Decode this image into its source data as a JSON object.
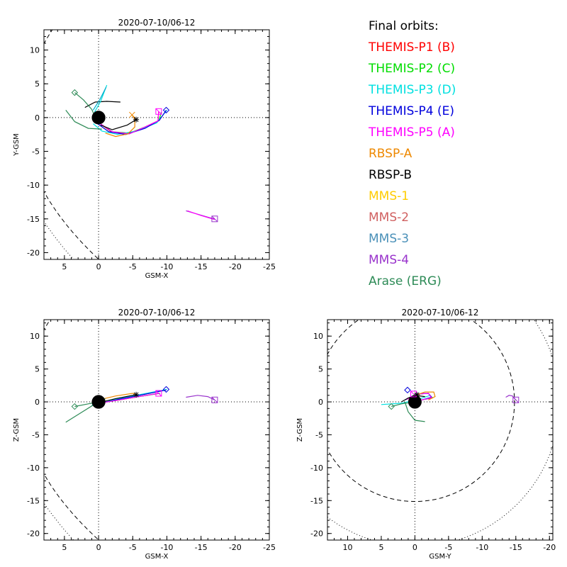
{
  "legend": {
    "header": "Final orbits:",
    "items": [
      {
        "label": "THEMIS-P1 (B)",
        "color": "#ff0000"
      },
      {
        "label": "THEMIS-P2 (C)",
        "color": "#00dd00"
      },
      {
        "label": "THEMIS-P3 (D)",
        "color": "#00e0e0"
      },
      {
        "label": "THEMIS-P4 (E)",
        "color": "#0000dd"
      },
      {
        "label": "THEMIS-P5 (A)",
        "color": "#ff00ff"
      },
      {
        "label": "RBSP-A",
        "color": "#ee8800"
      },
      {
        "label": "RBSP-B",
        "color": "#000000"
      },
      {
        "label": "MMS-1",
        "color": "#ffcc00"
      },
      {
        "label": "MMS-2",
        "color": "#d06060"
      },
      {
        "label": "MMS-3",
        "color": "#4a90b8"
      },
      {
        "label": "MMS-4",
        "color": "#9933cc"
      },
      {
        "label": "Arase (ERG)",
        "color": "#2e8b57"
      }
    ]
  },
  "chart_data": [
    {
      "type": "line",
      "title": "2020-07-10/06-12",
      "xlabel": "GSM-X",
      "ylabel": "Y-GSM",
      "xlim": [
        8,
        -25
      ],
      "ylim": [
        13,
        -21
      ],
      "xticks": [
        5,
        0,
        -5,
        -10,
        -15,
        -20,
        -25
      ],
      "yticks": [
        10,
        5,
        0,
        -5,
        -10,
        -15,
        -20
      ],
      "grid": "dotted zero lines",
      "series": [
        {
          "color": "#ff0000",
          "points": [
            [
              0.2,
              -0.6
            ],
            [
              -2,
              -2.2
            ],
            [
              -4.5,
              -2.4
            ],
            [
              -6.8,
              -1.4
            ],
            [
              -8.7,
              -0.5
            ],
            [
              -8.8,
              0.9
            ]
          ]
        },
        {
          "color": "#00dd00",
          "points": [
            [
              0.2,
              -0.6
            ],
            [
              -2,
              -2.1
            ],
            [
              -4.5,
              -2.3
            ],
            [
              -6.8,
              -1.4
            ],
            [
              -8.8,
              -0.5
            ],
            [
              -9.2,
              0.8
            ]
          ]
        },
        {
          "color": "#00e0e0",
          "points": [
            [
              0.8,
              -0.9
            ],
            [
              -0.5,
              -2
            ],
            [
              -2.8,
              -2.5
            ],
            [
              -5.5,
              -2
            ],
            [
              -8.5,
              -0.8
            ],
            [
              -10,
              1.1
            ]
          ]
        },
        {
          "color": "#0000dd",
          "points": [
            [
              0.3,
              -0.8
            ],
            [
              -1.5,
              -2.1
            ],
            [
              -4,
              -2.5
            ],
            [
              -6.8,
              -1.6
            ],
            [
              -8.9,
              -0.4
            ],
            [
              -9.9,
              1.1
            ]
          ]
        },
        {
          "color": "#ff00ff",
          "points": [
            [
              0.2,
              -0.6
            ],
            [
              -2,
              -2.1
            ],
            [
              -4.5,
              -2.4
            ],
            [
              -6.8,
              -1.4
            ],
            [
              -8.7,
              -0.5
            ],
            [
              -8.8,
              0.9
            ]
          ]
        },
        {
          "color": "#ee8800",
          "points": [
            [
              -1,
              -2.3
            ],
            [
              -2.5,
              -2.8
            ],
            [
              -4.3,
              -2.4
            ],
            [
              -5.3,
              -1.4
            ],
            [
              -5.3,
              -0.3
            ],
            [
              -4.9,
              0.4
            ]
          ]
        },
        {
          "color": "#000000",
          "points": [
            [
              2,
              1.5
            ],
            [
              0.5,
              2.3
            ],
            [
              -1.2,
              2.4
            ],
            [
              -3.2,
              2.3
            ]
          ]
        },
        {
          "color": "#000000",
          "points": [
            [
              -0.3,
              -1.1
            ],
            [
              -2,
              -1.8
            ],
            [
              -4.2,
              -1.1
            ],
            [
              -5.5,
              -0.3
            ]
          ]
        },
        {
          "color": "#00e0e0",
          "points": [
            [
              0.6,
              0.8
            ],
            [
              -0.3,
              2.4
            ],
            [
              -1.2,
              4.8
            ]
          ]
        },
        {
          "color": "#00aacc",
          "points": [
            [
              0.8,
              1.1
            ],
            [
              -0.2,
              2.7
            ],
            [
              -1.1,
              4.5
            ]
          ]
        },
        {
          "color": "#2e8b57",
          "points": [
            [
              4.8,
              1.1
            ],
            [
              3.5,
              -0.6
            ],
            [
              1.5,
              -1.6
            ],
            [
              -0.5,
              -1.7
            ]
          ]
        },
        {
          "color": "#2e8b57",
          "points": [
            [
              3.5,
              3.7
            ],
            [
              2.2,
              2.6
            ],
            [
              1,
              1.2
            ],
            [
              0.6,
              0.3
            ]
          ]
        },
        {
          "color": "#9933cc",
          "points": [
            [
              -12.8,
              -13.8
            ],
            [
              -14.5,
              -14.3
            ],
            [
              -16.2,
              -14.8
            ],
            [
              -17,
              -15
            ]
          ]
        },
        {
          "color": "#ff00ff",
          "points": [
            [
              -13,
              -13.8
            ],
            [
              -15,
              -14.5
            ],
            [
              -17,
              -15.1
            ]
          ]
        }
      ],
      "markers": [
        {
          "x": -9.9,
          "y": 1.1,
          "shape": "diamond",
          "color": "#0000dd"
        },
        {
          "x": -8.8,
          "y": 0.9,
          "shape": "square",
          "color": "#ff00ff"
        },
        {
          "x": -4.9,
          "y": 0.4,
          "shape": "cross",
          "color": "#ee8800"
        },
        {
          "x": -5.5,
          "y": -0.3,
          "shape": "star",
          "color": "#000000"
        },
        {
          "x": 3.5,
          "y": 3.7,
          "shape": "diamond",
          "color": "#2e8b57"
        },
        {
          "x": -17,
          "y": -15,
          "shape": "square",
          "color": "#9933cc"
        }
      ],
      "earth": {
        "x": 0,
        "y": 0,
        "r": 1
      },
      "boundaries": [
        {
          "style": "dashed",
          "x0": 11,
          "ymax": 25,
          "axis": "y"
        },
        {
          "style": "dotted",
          "x0": 13,
          "ymax": 28,
          "axis": "y"
        }
      ]
    },
    {
      "type": "line",
      "title": "2020-07-10/06-12",
      "xlabel": "GSM-X",
      "ylabel": "Z-GSM",
      "xlim": [
        8,
        -25
      ],
      "ylim": [
        -21,
        12.5
      ],
      "xticks": [
        5,
        0,
        -5,
        -10,
        -15,
        -20,
        -25
      ],
      "yticks": [
        10,
        5,
        0,
        -5,
        -10,
        -15,
        -20
      ],
      "grid": "dotted zero lines",
      "series": [
        {
          "color": "#ff0000",
          "points": [
            [
              0.5,
              -0.3
            ],
            [
              -3,
              0.3
            ],
            [
              -6.5,
              0.9
            ],
            [
              -8.8,
              1.3
            ]
          ]
        },
        {
          "color": "#00dd00",
          "points": [
            [
              0.5,
              -0.3
            ],
            [
              -3,
              0.3
            ],
            [
              -6.5,
              0.9
            ],
            [
              -9,
              1.3
            ]
          ]
        },
        {
          "color": "#00e0e0",
          "points": [
            [
              1,
              -0.5
            ],
            [
              -3,
              0.5
            ],
            [
              -7,
              1.3
            ],
            [
              -10,
              1.9
            ]
          ]
        },
        {
          "color": "#0000dd",
          "points": [
            [
              0.6,
              -0.4
            ],
            [
              -3,
              0.4
            ],
            [
              -7,
              1.2
            ],
            [
              -9.9,
              1.8
            ]
          ]
        },
        {
          "color": "#ff00ff",
          "points": [
            [
              0.5,
              -0.3
            ],
            [
              -3,
              0.3
            ],
            [
              -6.5,
              0.9
            ],
            [
              -8.8,
              1.3
            ]
          ]
        },
        {
          "color": "#ee8800",
          "points": [
            [
              0,
              0.3
            ],
            [
              -2.5,
              0.9
            ],
            [
              -5,
              1.3
            ],
            [
              -5.3,
              1.2
            ]
          ]
        },
        {
          "color": "#000000",
          "points": [
            [
              0.3,
              -0.2
            ],
            [
              -2.5,
              0.5
            ],
            [
              -5.5,
              1.1
            ]
          ]
        },
        {
          "color": "#2e8b57",
          "points": [
            [
              4.8,
              -3.1
            ],
            [
              2.5,
              -1.6
            ],
            [
              0.5,
              -0.3
            ],
            [
              -1,
              0.5
            ]
          ]
        },
        {
          "color": "#2e8b57",
          "points": [
            [
              3.5,
              -0.7
            ],
            [
              1.5,
              -0.3
            ],
            [
              0,
              0
            ]
          ]
        },
        {
          "color": "#9933cc",
          "points": [
            [
              -12.8,
              0.7
            ],
            [
              -14.5,
              1
            ],
            [
              -16,
              0.8
            ],
            [
              -17,
              0.3
            ]
          ]
        }
      ],
      "markers": [
        {
          "x": -9.9,
          "y": 1.9,
          "shape": "diamond",
          "color": "#0000dd"
        },
        {
          "x": -8.8,
          "y": 1.3,
          "shape": "square",
          "color": "#ff00ff"
        },
        {
          "x": -5.5,
          "y": 1.1,
          "shape": "star",
          "color": "#000000"
        },
        {
          "x": 3.5,
          "y": -0.7,
          "shape": "diamond",
          "color": "#2e8b57"
        },
        {
          "x": -17,
          "y": 0.3,
          "shape": "square",
          "color": "#9933cc"
        }
      ],
      "earth": {
        "x": 0,
        "y": 0,
        "r": 1
      },
      "boundaries": [
        {
          "style": "dashed",
          "x0": 11,
          "ymax": 25,
          "axis": "z"
        },
        {
          "style": "dotted",
          "x0": 13,
          "ymax": 28,
          "axis": "z"
        }
      ]
    },
    {
      "type": "line",
      "title": "2020-07-10/06-12",
      "xlabel": "GSM-Y",
      "ylabel": "Z-GSM",
      "xlim": [
        13,
        -20.5
      ],
      "ylim": [
        -21,
        12.5
      ],
      "xticks": [
        10,
        5,
        0,
        -5,
        -10,
        -15,
        -20
      ],
      "yticks": [
        10,
        5,
        0,
        -5,
        -10,
        -15,
        -20
      ],
      "grid": "dotted zero lines",
      "series": [
        {
          "color": "#ff0000",
          "points": [
            [
              1.2,
              0.4
            ],
            [
              -0.5,
              1.2
            ],
            [
              -2,
              1.3
            ],
            [
              -2.5,
              0.6
            ],
            [
              -1,
              0.3
            ]
          ]
        },
        {
          "color": "#00dd00",
          "points": [
            [
              1.2,
              0.4
            ],
            [
              -0.5,
              1.2
            ],
            [
              -2,
              1.3
            ],
            [
              -2.6,
              0.6
            ],
            [
              -1,
              0.3
            ]
          ]
        },
        {
          "color": "#00e0e0",
          "points": [
            [
              5,
              -0.4
            ],
            [
              2,
              -0.2
            ],
            [
              -0.5,
              0.4
            ],
            [
              -2.3,
              1
            ]
          ]
        },
        {
          "color": "#0000dd",
          "points": [
            [
              1.5,
              0.3
            ],
            [
              -0.3,
              1.2
            ],
            [
              -2,
              1.3
            ],
            [
              -2.5,
              0.7
            ],
            [
              -1,
              0.3
            ]
          ]
        },
        {
          "color": "#ff00ff",
          "points": [
            [
              1.2,
              0.4
            ],
            [
              -0.5,
              1.2
            ],
            [
              -2,
              1.3
            ],
            [
              -2.5,
              0.6
            ],
            [
              -1,
              0.3
            ]
          ]
        },
        {
          "color": "#ee8800",
          "points": [
            [
              0,
              1
            ],
            [
              -1.5,
              1.5
            ],
            [
              -2.8,
              1.5
            ],
            [
              -3,
              0.8
            ],
            [
              -2,
              0.3
            ]
          ]
        },
        {
          "color": "#000000",
          "points": [
            [
              2,
              0
            ],
            [
              1,
              0.6
            ],
            [
              0,
              1
            ],
            [
              -1.5,
              0.8
            ]
          ]
        },
        {
          "color": "#2e8b57",
          "points": [
            [
              -1.5,
              -3
            ],
            [
              0,
              -2.8
            ],
            [
              1,
              -1.5
            ],
            [
              1.5,
              0
            ]
          ]
        },
        {
          "color": "#2e8b57",
          "points": [
            [
              3.5,
              -0.7
            ],
            [
              2,
              -0.3
            ],
            [
              0,
              0
            ]
          ]
        },
        {
          "color": "#9933cc",
          "points": [
            [
              -13.5,
              0.7
            ],
            [
              -14,
              1
            ],
            [
              -14.5,
              0.9
            ],
            [
              -15,
              0.3
            ]
          ]
        }
      ],
      "markers": [
        {
          "x": 1.1,
          "y": 1.8,
          "shape": "diamond",
          "color": "#0000dd"
        },
        {
          "x": 0.2,
          "y": 1.2,
          "shape": "square",
          "color": "#ff00ff"
        },
        {
          "x": -0.3,
          "y": 1.1,
          "shape": "star",
          "color": "#000000"
        },
        {
          "x": 3.5,
          "y": -0.7,
          "shape": "diamond",
          "color": "#2e8b57"
        },
        {
          "x": -15,
          "y": 0.3,
          "shape": "square",
          "color": "#9933cc"
        }
      ],
      "earth": {
        "x": 0,
        "y": 0,
        "r": 1
      },
      "boundaries": [
        {
          "style": "dashed",
          "shape": "circle",
          "cx": 0,
          "cy": 0,
          "r": 14.8
        },
        {
          "style": "dotted",
          "shape": "circle",
          "cx": 0,
          "cy": 0,
          "r": 21.5
        }
      ]
    }
  ]
}
